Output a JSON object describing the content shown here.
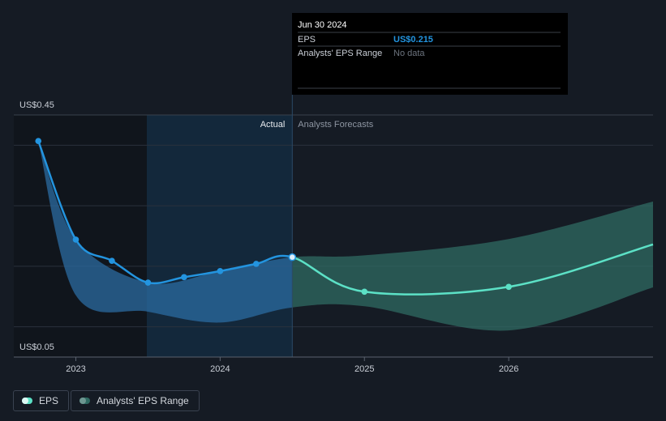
{
  "chart_data": {
    "type": "line",
    "xlim": [
      2022.57,
      2027.0
    ],
    "xticks": [
      2023,
      2024,
      2025,
      2026
    ],
    "ylim": [
      0.05,
      0.45
    ],
    "yticks": [
      {
        "value": 0.05,
        "label": "US$0.05"
      },
      {
        "value": 0.45,
        "label": "US$0.45"
      }
    ],
    "ygrid": [
      0.1,
      0.2,
      0.3,
      0.4
    ],
    "actual_end": 2024.5,
    "actual_label": "Actual",
    "forecast_label": "Analysts Forecasts",
    "series": [
      {
        "name": "EPS",
        "color": "#2394df",
        "forecast_color": "#5ce1c6",
        "x": [
          2022.74,
          2023.0,
          2023.25,
          2023.5,
          2023.75,
          2024.0,
          2024.25,
          2024.5,
          2025.0,
          2026.0,
          2027.0
        ],
        "values": [
          0.407,
          0.244,
          0.209,
          0.173,
          0.182,
          0.192,
          0.204,
          0.215,
          0.158,
          0.166,
          0.236
        ]
      }
    ],
    "range": {
      "name": "Analysts' EPS Range",
      "color": "#2a6aa0",
      "forecast_color": "#2f6a62",
      "x": [
        2022.74,
        2023.0,
        2023.5,
        2024.0,
        2024.5,
        2025.0,
        2026.0,
        2027.0
      ],
      "low": [
        0.407,
        0.152,
        0.125,
        0.107,
        0.132,
        0.134,
        0.094,
        0.165
      ],
      "high": [
        0.407,
        0.244,
        0.173,
        0.192,
        0.215,
        0.218,
        0.245,
        0.307
      ]
    },
    "legend": "bottom-left",
    "tooltip": {
      "date": "Jun 30 2024",
      "rows": [
        [
          "EPS",
          "US$0.215"
        ],
        [
          "Analysts' EPS Range",
          "No data"
        ]
      ]
    }
  }
}
